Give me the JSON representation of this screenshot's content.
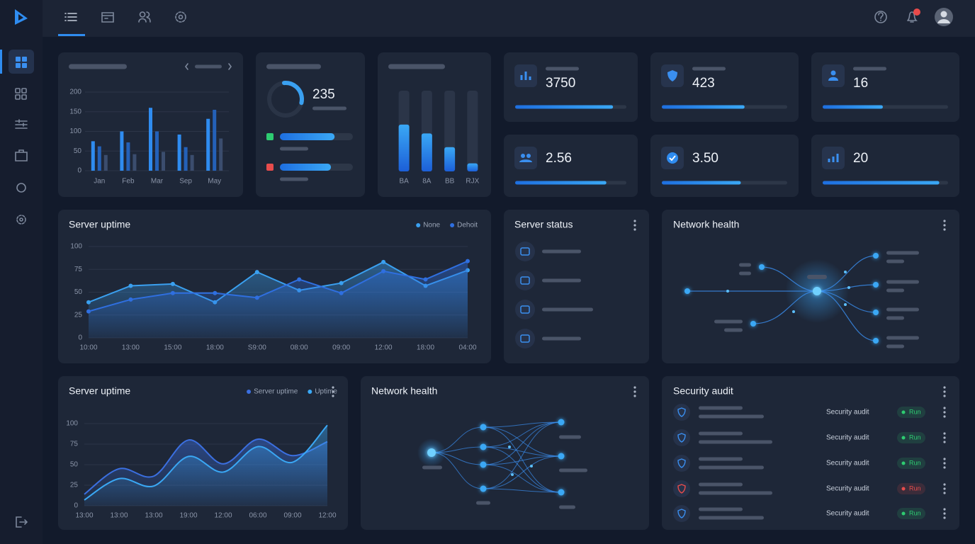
{
  "bar_card": {
    "type": "bar",
    "categories": [
      "Jan",
      "Feb",
      "Mar",
      "Sep",
      "May"
    ],
    "series": [
      {
        "color": "#2f8cf0",
        "values": [
          75,
          100,
          160,
          92,
          132
        ]
      },
      {
        "color": "#2461b8",
        "values": [
          62,
          72,
          100,
          60,
          155
        ]
      },
      {
        "color": "#3b4d6e",
        "values": [
          40,
          42,
          48,
          40,
          82
        ]
      }
    ],
    "ylim": [
      0,
      200
    ],
    "yticks": [
      0,
      50,
      100,
      150,
      200
    ],
    "grid": true
  },
  "donut_card": {
    "value": "235",
    "ring_percent": 30,
    "ring_color": "#3aa0f0",
    "rows": [
      {
        "color": "#2ecc71",
        "percent": 75
      },
      {
        "color": "#e74c4c",
        "percent": 70
      }
    ]
  },
  "column_card": {
    "categories": [
      "BA",
      "8A",
      "BB",
      "RJX"
    ],
    "values": [
      58,
      47,
      30,
      10
    ],
    "ylim": [
      0,
      100
    ]
  },
  "stats": [
    {
      "value": "3750",
      "percent": 88
    },
    {
      "value": "423",
      "percent": 66
    },
    {
      "value": "16",
      "percent": 48
    },
    {
      "value": "2.56",
      "percent": 82
    },
    {
      "value": "3.50",
      "percent": 63
    },
    {
      "value": "20",
      "percent": 93
    }
  ],
  "uptime_chart": {
    "type": "line",
    "title": "Server uptime",
    "x": [
      "10:00",
      "13:00",
      "15:00",
      "18:00",
      "S9:00",
      "08:00",
      "09:00",
      "12:00",
      "18:00",
      "04:00"
    ],
    "series": [
      {
        "name": "None",
        "color": "#3aa0f0",
        "values": [
          39,
          57,
          59,
          39,
          72,
          52,
          60,
          83,
          57,
          74
        ]
      },
      {
        "name": "Dehoit",
        "color": "#2f6fe0",
        "values": [
          29,
          42,
          49,
          49,
          44,
          64,
          49,
          73,
          64,
          84
        ]
      }
    ],
    "ylim": [
      0,
      100
    ],
    "yticks": [
      0,
      25,
      50,
      75,
      100
    ],
    "grid": true,
    "legend": "top-right",
    "markers": true
  },
  "status_card": {
    "title": "Server status"
  },
  "network_card": {
    "title": "Network health"
  },
  "uptime_chart_2": {
    "type": "line",
    "title": "Server uptime",
    "x": [
      "13:00",
      "13:00",
      "13:00",
      "19:00",
      "12:00",
      "06:00",
      "09:00",
      "12:00"
    ],
    "series": [
      {
        "name": "Server uptime",
        "color": "#3b6fe0",
        "values": [
          14,
          45,
          36,
          80,
          51,
          81,
          61,
          78
        ]
      },
      {
        "name": "Uptime",
        "color": "#3aa8f5",
        "values": [
          7,
          33,
          24,
          60,
          41,
          72,
          53,
          98
        ]
      }
    ],
    "ylim": [
      0,
      100
    ],
    "yticks": [
      0,
      25,
      50,
      75,
      100
    ],
    "grid": true,
    "legend": "top-right",
    "smooth": true
  },
  "network_card_2": {
    "title": "Network health"
  },
  "audit_card": {
    "title": "Security audit",
    "rows": [
      {
        "label": "Security audit",
        "status": "Run",
        "color": "#2ecc71"
      },
      {
        "label": "Security audit",
        "status": "Run",
        "color": "#2ecc71"
      },
      {
        "label": "Security audit",
        "status": "Run",
        "color": "#2ecc71"
      },
      {
        "label": "Security audit",
        "status": "Run",
        "color": "#e74c4c"
      },
      {
        "label": "Security audit",
        "status": "Run",
        "color": "#2ecc71"
      }
    ]
  }
}
